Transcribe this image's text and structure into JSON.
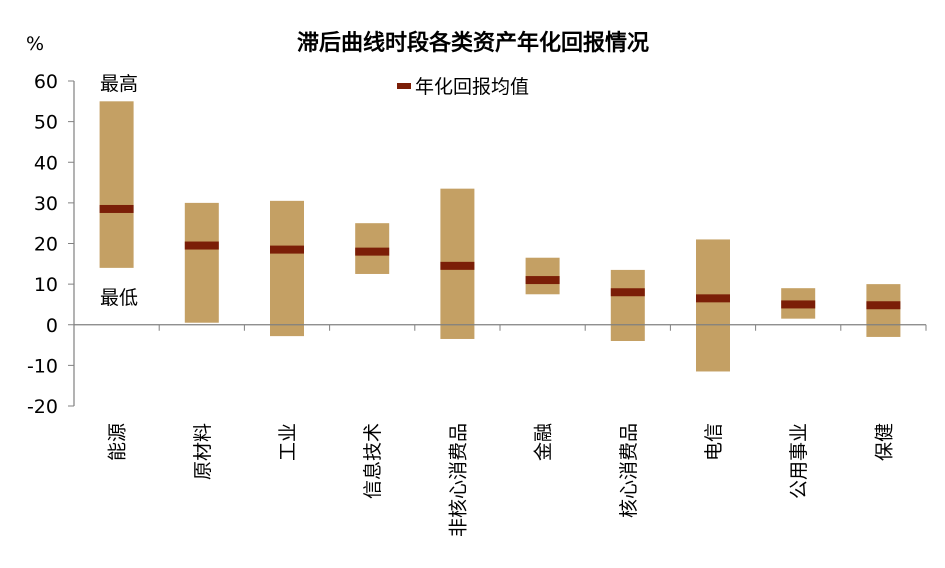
{
  "chart_data": {
    "type": "bar",
    "title": "滞后曲线时段各类资产年化回报情况",
    "ylabel": "%",
    "xlabel": "",
    "ylim": [
      -20,
      60
    ],
    "yticks": [
      60,
      50,
      40,
      30,
      20,
      10,
      0,
      -10,
      -20
    ],
    "grid": false,
    "legend": {
      "position": "top-center",
      "entries": [
        "年化回报均值"
      ]
    },
    "annotations": {
      "high": "最高",
      "low": "最低"
    },
    "categories": [
      "能源",
      "原材料",
      "工业",
      "信息技术",
      "非核心消费品",
      "金融",
      "核心消费品",
      "电信",
      "公用事业",
      "保健"
    ],
    "series": [
      {
        "name": "最高",
        "values": [
          55,
          30,
          30.5,
          25,
          33.5,
          16.5,
          13.5,
          21,
          9,
          10
        ]
      },
      {
        "name": "最低",
        "values": [
          14,
          0.5,
          -2.8,
          12.5,
          -3.5,
          7.5,
          -4,
          -11.5,
          1.5,
          -3
        ]
      },
      {
        "name": "年化回报均值",
        "values": [
          28.5,
          19.5,
          18.5,
          18,
          14.5,
          11,
          8,
          6.5,
          5,
          4.8
        ]
      }
    ],
    "colors": {
      "range": "#c4a064",
      "mean": "#7b1e07",
      "axis": "#808080"
    }
  }
}
